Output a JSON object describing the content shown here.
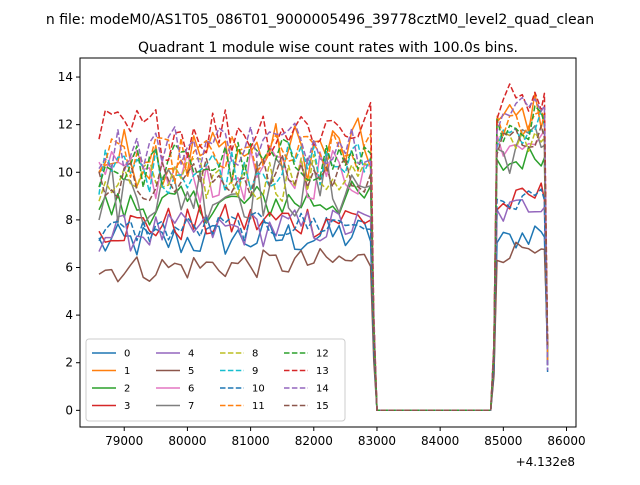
{
  "figure": {
    "suptitle": "n file: modeM0/AS1T05_086T01_9000005496_39778cztM0_level2_quad_clean"
  },
  "chart_data": {
    "type": "line",
    "title": "Quadrant 1 module wise count rates with 100.0s bins.",
    "xlabel": "",
    "ylabel": "",
    "x_offset_label": "+4.132e8",
    "xlim": [
      78300,
      86150
    ],
    "ylim": [
      -0.7,
      14.8
    ],
    "x_ticks": [
      79000,
      80000,
      81000,
      82000,
      83000,
      84000,
      85000,
      86000
    ],
    "x_tick_labels": [
      "79000",
      "80000",
      "81000",
      "82000",
      "83000",
      "84000",
      "85000",
      "86000"
    ],
    "y_ticks": [
      0,
      2,
      4,
      6,
      8,
      10,
      12,
      14
    ],
    "y_tick_labels": [
      "0",
      "2",
      "4",
      "6",
      "8",
      "10",
      "12",
      "14"
    ],
    "grid": false,
    "legend": {
      "placement": "lower-left",
      "columns": 4
    },
    "active_segment_1": {
      "start": 78600,
      "end": 82900,
      "step": 100
    },
    "active_segment_2": {
      "start": 84900,
      "end": 85700,
      "step": 100
    },
    "series": [
      {
        "name": "0",
        "color": "#1f77b4",
        "dashed": false,
        "level1": 7.0,
        "level2": 7.0,
        "amp": 0.8
      },
      {
        "name": "1",
        "color": "#ff7f0e",
        "dashed": false,
        "level1": 10.6,
        "level2": 12.0,
        "amp": 1.3
      },
      {
        "name": "2",
        "color": "#2ca02c",
        "dashed": false,
        "level1": 8.5,
        "level2": 10.2,
        "amp": 0.8
      },
      {
        "name": "3",
        "color": "#d62728",
        "dashed": false,
        "level1": 7.7,
        "level2": 8.5,
        "amp": 0.8
      },
      {
        "name": "4",
        "color": "#9467bd",
        "dashed": false,
        "level1": 7.4,
        "level2": 8.2,
        "amp": 0.8
      },
      {
        "name": "5",
        "color": "#8c564b",
        "dashed": false,
        "level1": 5.9,
        "level2": 6.5,
        "amp": 0.6
      },
      {
        "name": "6",
        "color": "#e377c2",
        "dashed": false,
        "level1": 9.7,
        "level2": 11.3,
        "amp": 1.2
      },
      {
        "name": "7",
        "color": "#7f7f7f",
        "dashed": false,
        "level1": 9.1,
        "level2": 10.7,
        "amp": 1.4
      },
      {
        "name": "8",
        "color": "#bcbd22",
        "dashed": true,
        "level1": 9.5,
        "level2": 11.0,
        "amp": 1.0
      },
      {
        "name": "9",
        "color": "#17becf",
        "dashed": true,
        "level1": 10.0,
        "level2": 11.5,
        "amp": 1.0
      },
      {
        "name": "10",
        "color": "#1f77b4",
        "dashed": true,
        "level1": 7.5,
        "level2": 8.5,
        "amp": 0.6
      },
      {
        "name": "11",
        "color": "#ff7f0e",
        "dashed": true,
        "level1": 10.4,
        "level2": 11.8,
        "amp": 1.0
      },
      {
        "name": "12",
        "color": "#2ca02c",
        "dashed": true,
        "level1": 10.2,
        "level2": 11.6,
        "amp": 1.0
      },
      {
        "name": "13",
        "color": "#d62728",
        "dashed": true,
        "level1": 11.6,
        "level2": 12.8,
        "amp": 1.2
      },
      {
        "name": "14",
        "color": "#9467bd",
        "dashed": true,
        "level1": 11.0,
        "level2": 12.3,
        "amp": 1.0
      },
      {
        "name": "15",
        "color": "#8c564b",
        "dashed": true,
        "level1": 9.6,
        "level2": 11.0,
        "amp": 0.9
      }
    ]
  }
}
